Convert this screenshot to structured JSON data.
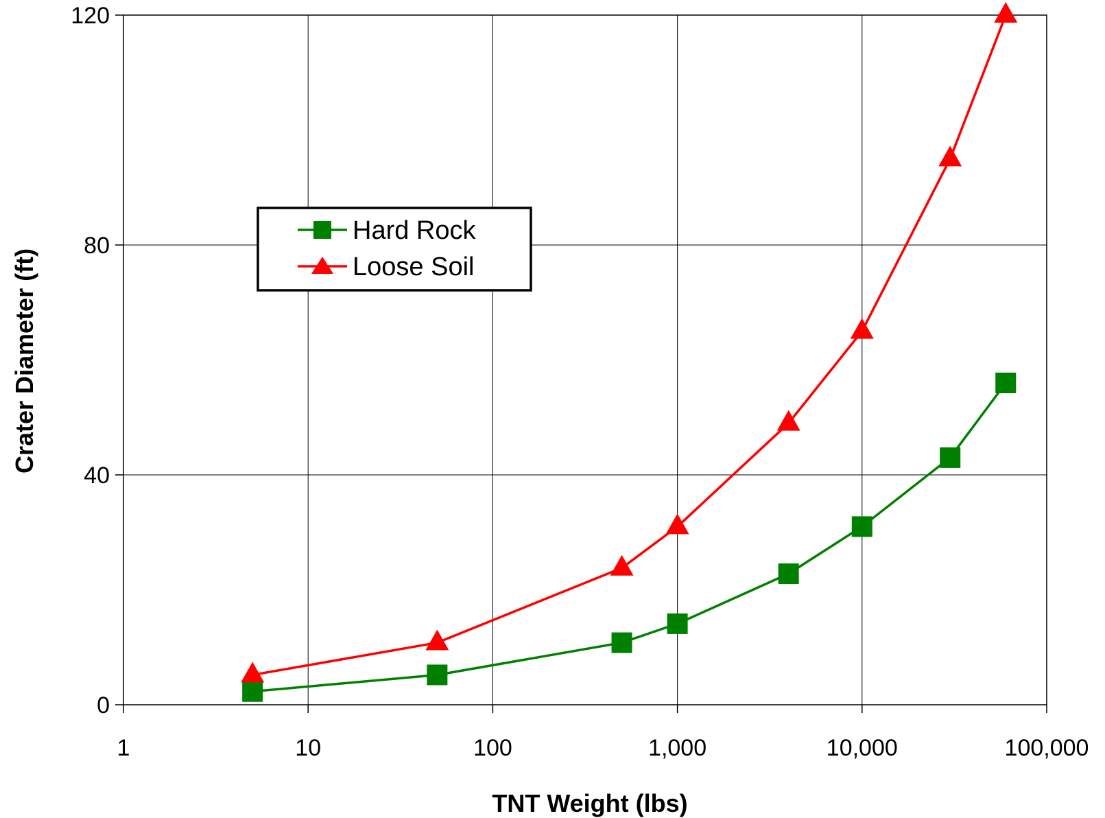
{
  "chart_data": {
    "type": "line",
    "xlabel": "TNT Weight (lbs)",
    "ylabel": "Crater Diameter (ft)",
    "x_scale": "log",
    "xlim": [
      1,
      100000
    ],
    "ylim": [
      0,
      120
    ],
    "x_ticks": [
      1,
      10,
      100,
      1000,
      10000,
      100000
    ],
    "x_tick_labels": [
      "1",
      "10",
      "100",
      "1,000",
      "10,000",
      "100,000"
    ],
    "y_ticks": [
      0,
      40,
      80,
      120
    ],
    "y_tick_labels": [
      "0",
      "40",
      "80",
      "120"
    ],
    "grid": true,
    "legend_position": "upper-left",
    "x": [
      5,
      50,
      500,
      1000,
      4000,
      10000,
      30000,
      60000
    ],
    "series": [
      {
        "name": "Hard Rock",
        "color": "#008000",
        "marker": "square",
        "values": [
          2.3,
          5.2,
          10.8,
          14.1,
          22.8,
          31.0,
          43.0,
          56.0
        ]
      },
      {
        "name": "Loose Soil",
        "color": "#ff0000",
        "marker": "triangle",
        "values": [
          5.2,
          10.8,
          23.8,
          31.0,
          49.0,
          65.0,
          95.0,
          120.0
        ]
      }
    ]
  }
}
